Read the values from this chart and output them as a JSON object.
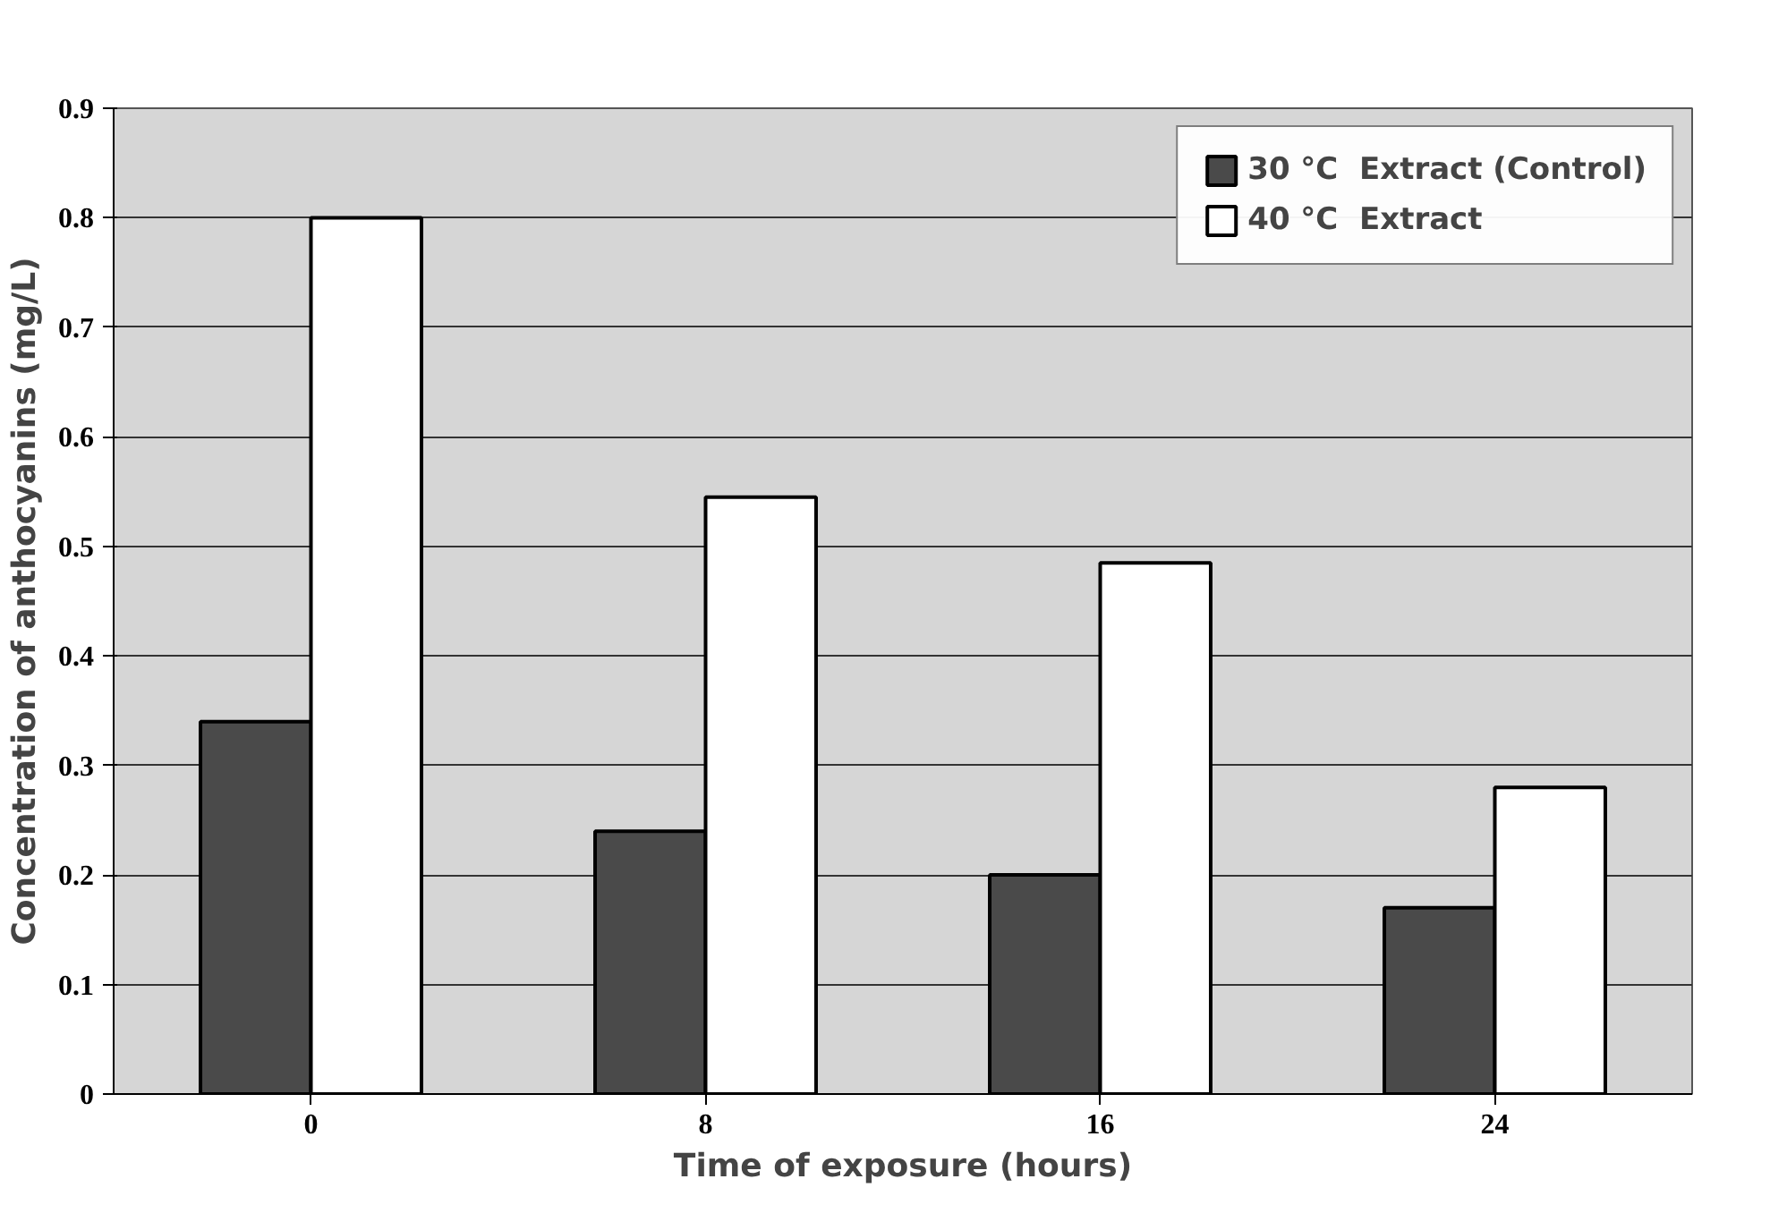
{
  "chart_data": {
    "type": "bar",
    "xlabel": "Time of exposure (hours)",
    "ylabel": "Concentration of anthocyanins (mg/L)",
    "categories": [
      "0",
      "8",
      "16",
      "24"
    ],
    "series": [
      {
        "name": "30 °C  Extract (Control)",
        "color": "#4a4a4a",
        "values": [
          0.34,
          0.24,
          0.2,
          0.17
        ]
      },
      {
        "name": "40 °C  Extract",
        "color": "#ffffff",
        "values": [
          0.8,
          0.545,
          0.485,
          0.28
        ]
      }
    ],
    "ylim": [
      0,
      0.9
    ],
    "yticks": [
      {
        "value": 0,
        "label": "0"
      },
      0.1,
      0.2,
      0.3,
      0.4,
      0.5,
      0.6,
      0.7,
      0.8,
      0.9
    ],
    "grid": "y",
    "legend": "top right"
  }
}
